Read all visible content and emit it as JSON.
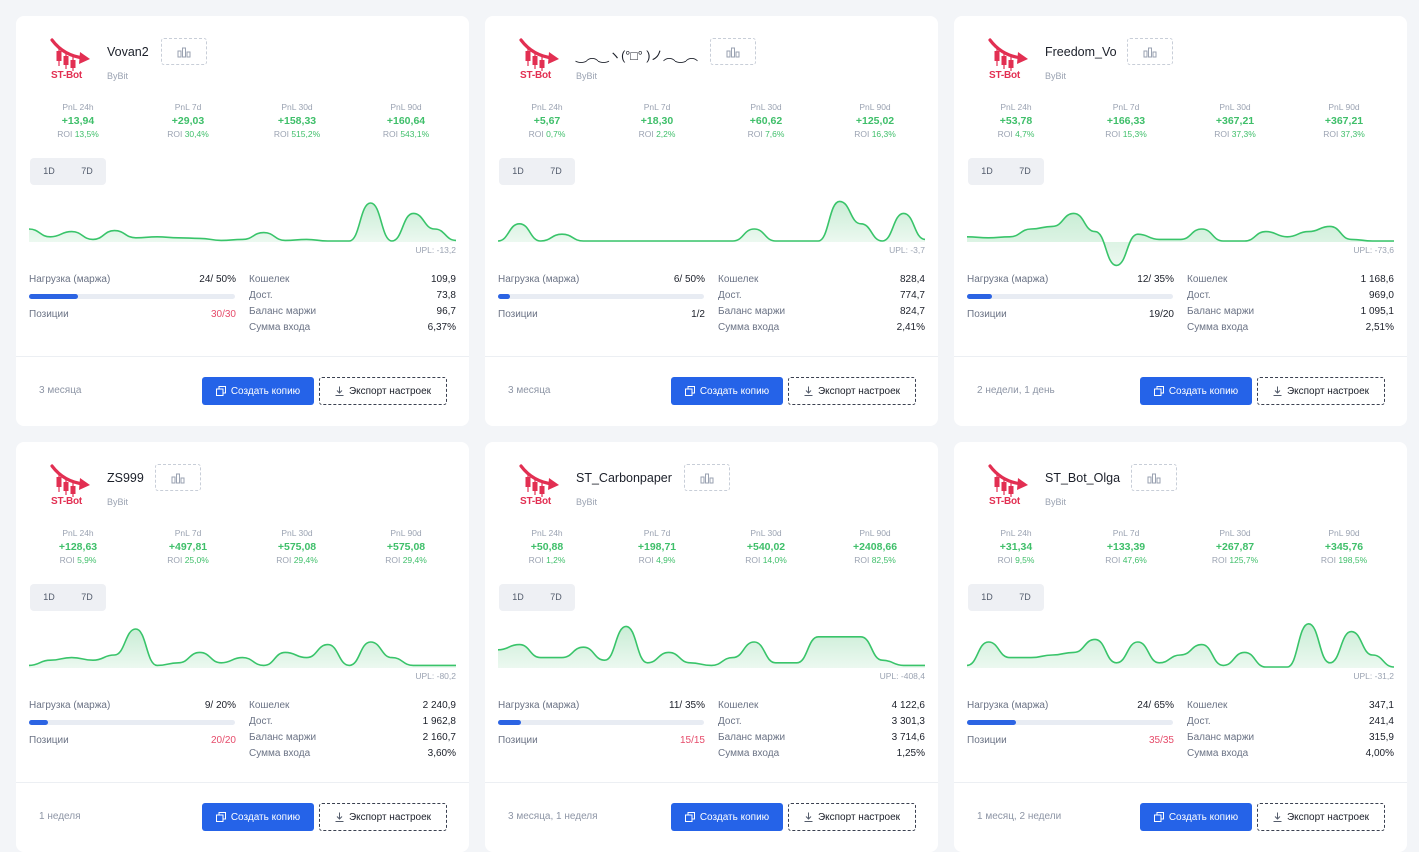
{
  "labels": {
    "pnl_24h": "PnL 24h",
    "pnl_7d": "PnL 7d",
    "pnl_30d": "PnL 30d",
    "pnl_90d": "PnL 90d",
    "roi": "ROI",
    "tf_1d": "1D",
    "tf_7d": "7D",
    "upl": "UPL:",
    "load": "Нагрузка (маржа)",
    "positions": "Позиции",
    "wallet": "Кошелек",
    "available": "Дост.",
    "margin_balance": "Баланс маржи",
    "entry_sum": "Сумма входа",
    "copy_btn": "Создать копию",
    "export_btn": "Экспорт настроек",
    "logo_text": "ST-Bot"
  },
  "colors": {
    "accent": "#2563e8",
    "positive": "#3fbf6a",
    "negative": "#e64c6b",
    "logo": "#e22f52"
  },
  "bots": [
    {
      "name": "Vovan2",
      "exchange": "ByBit",
      "pnl": [
        {
          "value": "+13,94",
          "roi": "13,5%"
        },
        {
          "value": "+29,03",
          "roi": "30,4%"
        },
        {
          "value": "+158,33",
          "roi": "515,2%"
        },
        {
          "value": "+160,64",
          "roi": "543,1%"
        }
      ],
      "upl": "-13,2",
      "load_text": "24/ 50%",
      "load_pct": 24,
      "positions": "30/30",
      "positions_full": true,
      "wallet": "109,9",
      "available": "73,8",
      "margin_balance": "96,7",
      "entry_sum": "6,37%",
      "age": "3 месяца",
      "chart": [
        0.25,
        0.1,
        0.2,
        0.05,
        0.22,
        0.08,
        0.1,
        0.08,
        0.07,
        0.03,
        0.05,
        0.18,
        0.03,
        0.05,
        0.02,
        0.02,
        0.75,
        0.02,
        0.55,
        0.25,
        0.03
      ]
    },
    {
      "name": "‿︵‿ヽ(°□° )ノ︵‿︵",
      "exchange": "ByBit",
      "pnl": [
        {
          "value": "+5,67",
          "roi": "0,7%"
        },
        {
          "value": "+18,30",
          "roi": "2,2%"
        },
        {
          "value": "+60,62",
          "roi": "7,6%"
        },
        {
          "value": "+125,02",
          "roi": "16,3%"
        }
      ],
      "upl": "-3,7",
      "load_text": "6/ 50%",
      "load_pct": 6,
      "positions": "1/2",
      "positions_full": false,
      "wallet": "828,4",
      "available": "774,7",
      "margin_balance": "824,7",
      "entry_sum": "2,41%",
      "age": "3 месяца",
      "chart": [
        0.02,
        0.35,
        0.02,
        0.15,
        0.02,
        0.02,
        0.02,
        0.02,
        0.02,
        0.02,
        0.02,
        0.02,
        0.25,
        0.02,
        0.02,
        0.02,
        0.78,
        0.35,
        0.02,
        0.55,
        0.05
      ]
    },
    {
      "name": "Freedom_Vo",
      "exchange": "ByBit",
      "pnl": [
        {
          "value": "+53,78",
          "roi": "4,7%"
        },
        {
          "value": "+166,33",
          "roi": "15,3%"
        },
        {
          "value": "+367,21",
          "roi": "37,3%"
        },
        {
          "value": "+367,21",
          "roi": "37,3%"
        }
      ],
      "upl": "-73,6",
      "load_text": "12/ 35%",
      "load_pct": 12,
      "positions": "19/20",
      "positions_full": false,
      "wallet": "1 168,6",
      "available": "969,0",
      "margin_balance": "1 095,1",
      "entry_sum": "2,51%",
      "age": "2 недели, 1 день",
      "chart": [
        0.1,
        0.08,
        0.1,
        0.25,
        0.3,
        0.55,
        0.2,
        -0.45,
        0.15,
        0.05,
        0.05,
        0.25,
        0.02,
        0.02,
        0.2,
        0.1,
        0.2,
        0.3,
        0.05,
        0.02,
        0.02
      ]
    },
    {
      "name": "ZS999",
      "exchange": "ByBit",
      "pnl": [
        {
          "value": "+128,63",
          "roi": "5,9%"
        },
        {
          "value": "+497,81",
          "roi": "25,0%"
        },
        {
          "value": "+575,08",
          "roi": "29,4%"
        },
        {
          "value": "+575,08",
          "roi": "29,4%"
        }
      ],
      "upl": "-80,2",
      "load_text": "9/ 20%",
      "load_pct": 9,
      "positions": "20/20",
      "positions_full": true,
      "wallet": "2 240,9",
      "available": "1 962,8",
      "margin_balance": "2 160,7",
      "entry_sum": "3,60%",
      "age": "1 неделя",
      "chart": [
        0.05,
        0.15,
        0.2,
        0.15,
        0.25,
        0.75,
        0.05,
        0.1,
        0.3,
        0.1,
        0.2,
        0.05,
        0.3,
        0.2,
        0.45,
        0.05,
        0.5,
        0.2,
        0.05,
        0.05,
        0.05
      ]
    },
    {
      "name": "ST_Carbonpaper",
      "exchange": "ByBit",
      "pnl": [
        {
          "value": "+50,88",
          "roi": "1,2%"
        },
        {
          "value": "+198,71",
          "roi": "4,9%"
        },
        {
          "value": "+540,02",
          "roi": "14,0%"
        },
        {
          "value": "+2408,66",
          "roi": "82,5%"
        }
      ],
      "upl": "-408,4",
      "load_text": "11/ 35%",
      "load_pct": 11,
      "positions": "15/15",
      "positions_full": true,
      "wallet": "4 122,6",
      "available": "3 301,3",
      "margin_balance": "3 714,6",
      "entry_sum": "1,25%",
      "age": "3 месяца, 1 неделя",
      "chart": [
        0.35,
        0.45,
        0.2,
        0.2,
        0.4,
        0.15,
        0.8,
        0.1,
        0.3,
        0.1,
        0.05,
        0.2,
        0.5,
        0.1,
        0.1,
        0.6,
        0.6,
        0.6,
        0.15,
        0.05,
        0.05
      ]
    },
    {
      "name": "ST_Bot_Olga",
      "exchange": "ByBit",
      "pnl": [
        {
          "value": "+31,34",
          "roi": "9,5%"
        },
        {
          "value": "+133,39",
          "roi": "47,6%"
        },
        {
          "value": "+267,87",
          "roi": "125,7%"
        },
        {
          "value": "+345,76",
          "roi": "198,5%"
        }
      ],
      "upl": "-31,2",
      "load_text": "24/ 65%",
      "load_pct": 24,
      "positions": "35/35",
      "positions_full": true,
      "wallet": "347,1",
      "available": "241,4",
      "margin_balance": "315,9",
      "entry_sum": "4,00%",
      "age": "1 месяц, 2 недели",
      "chart": [
        0.05,
        0.5,
        0.2,
        0.2,
        0.25,
        0.3,
        0.55,
        0.1,
        0.5,
        0.1,
        0.25,
        0.45,
        0.05,
        0.3,
        0.02,
        0.02,
        0.85,
        0.1,
        0.7,
        0.25,
        0.02
      ]
    }
  ]
}
